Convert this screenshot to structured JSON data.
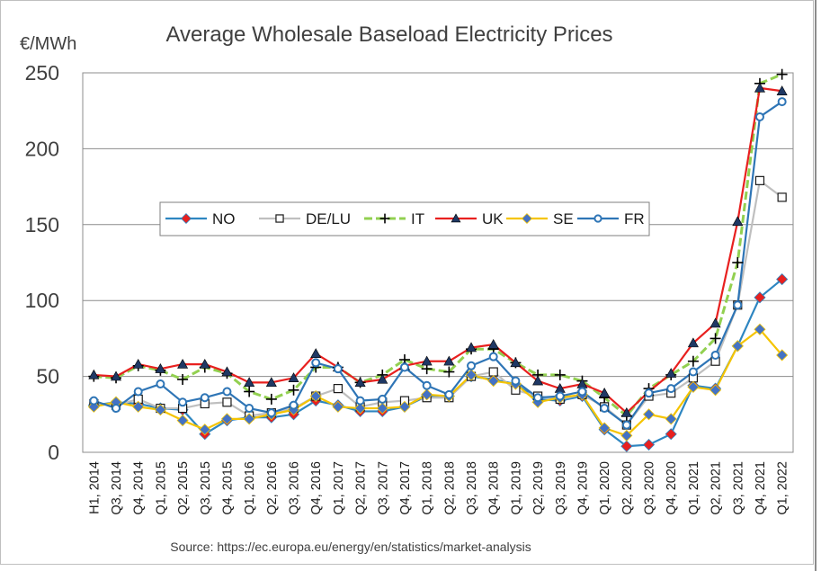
{
  "chart_data": {
    "type": "line",
    "title": "Average Wholesale Baseload Electricity Prices",
    "ylabel": "€/MWh",
    "source": "Source: https://ec.europa.eu/energy/en/statistics/market-analysis",
    "ylim": [
      0,
      250
    ],
    "yticks": [
      "0",
      "50",
      "100",
      "150",
      "200",
      "250"
    ],
    "grid": true,
    "legend_position": "middle-left",
    "categories": [
      "H1, 2014",
      "Q3, 2014",
      "Q4, 2014",
      "Q1, 2015",
      "Q2, 2015",
      "Q3, 2015",
      "Q4, 2015",
      "Q1, 2016",
      "Q2, 2016",
      "Q3, 2016",
      "Q4, 2016",
      "Q1, 2017",
      "Q2, 2017",
      "Q3, 2017",
      "Q4, 2017",
      "Q1, 2018",
      "Q2, 2018",
      "Q3, 2018",
      "Q4, 2018",
      "Q1, 2019",
      "Q2, 2019",
      "Q3, 2019",
      "Q4, 2019",
      "Q1, 2020",
      "Q2, 2020",
      "Q3, 2020",
      "Q4, 2020",
      "Q1, 2021",
      "Q2, 2021",
      "Q3, 2021",
      "Q4, 2021",
      "Q1, 2022"
    ],
    "series": [
      {
        "name": "NO",
        "color": "#2e86c1",
        "marker": "diamond",
        "markerFill": "#e8201f",
        "marker_every": 2,
        "values": [
          31,
          33,
          32,
          29,
          28,
          12,
          21,
          23,
          23,
          25,
          34,
          31,
          27,
          27,
          30,
          37,
          37,
          50,
          48,
          45,
          35,
          34,
          37,
          15,
          4,
          5,
          12,
          44,
          42,
          70,
          102,
          114
        ]
      },
      {
        "name": "DE/LU",
        "color": "#bfbfbf",
        "marker": "square",
        "markerFill": "#ffffff",
        "values": [
          32,
          31,
          35,
          29,
          29,
          32,
          33,
          24,
          26,
          29,
          37,
          42,
          30,
          33,
          34,
          36,
          36,
          50,
          53,
          41,
          37,
          35,
          38,
          30,
          18,
          37,
          39,
          49,
          60,
          97,
          179,
          168
        ]
      },
      {
        "name": "IT",
        "color": "#92d050",
        "marker": "plus",
        "markerFill": "#000000",
        "dashed": true,
        "values": [
          50,
          49,
          57,
          54,
          48,
          56,
          52,
          40,
          35,
          41,
          56,
          56,
          46,
          51,
          61,
          55,
          53,
          68,
          68,
          59,
          51,
          51,
          47,
          36,
          24,
          42,
          51,
          60,
          75,
          125,
          243,
          249
        ]
      },
      {
        "name": "UK",
        "color": "#e8201f",
        "marker": "triangle",
        "markerFill": "#1f3864",
        "values": [
          51,
          50,
          58,
          55,
          58,
          58,
          53,
          46,
          46,
          49,
          65,
          56,
          46,
          48,
          57,
          60,
          60,
          69,
          71,
          59,
          47,
          42,
          45,
          39,
          26,
          40,
          52,
          72,
          85,
          152,
          240,
          238
        ]
      },
      {
        "name": "SE",
        "color": "#f5c400",
        "marker": "diamond",
        "markerFill": "#4472c4",
        "values": [
          30,
          33,
          30,
          28,
          21,
          15,
          22,
          22,
          25,
          28,
          37,
          30,
          29,
          29,
          30,
          38,
          37,
          51,
          47,
          45,
          33,
          36,
          38,
          16,
          11,
          25,
          22,
          43,
          41,
          70,
          81,
          64
        ]
      },
      {
        "name": "FR",
        "color": "#2e75b6",
        "marker": "circle",
        "markerFill": "#ffffff",
        "values": [
          34,
          29,
          40,
          45,
          33,
          36,
          40,
          29,
          26,
          31,
          59,
          55,
          34,
          35,
          56,
          44,
          38,
          57,
          63,
          47,
          36,
          37,
          40,
          29,
          18,
          39,
          42,
          53,
          64,
          97,
          221,
          231
        ]
      }
    ]
  }
}
